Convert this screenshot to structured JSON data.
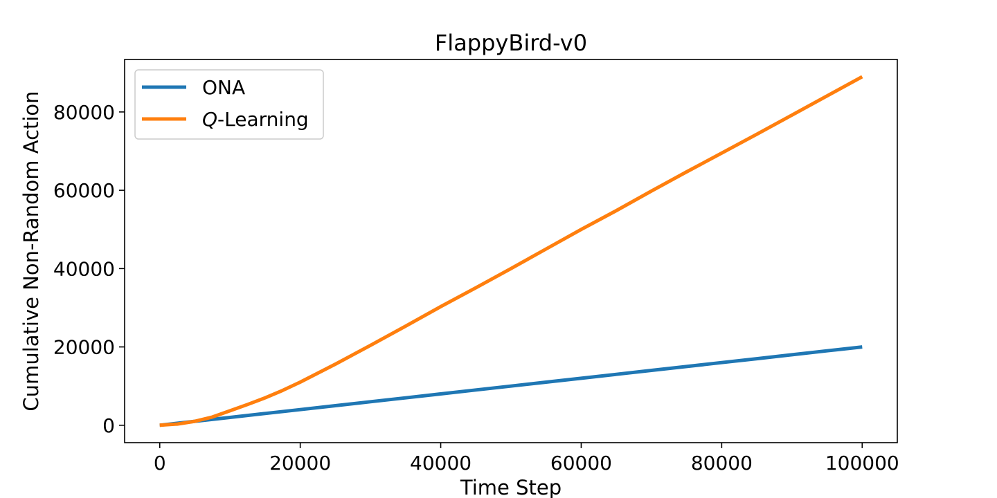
{
  "chart_data": {
    "type": "line",
    "title": "FlappyBird-v0",
    "xlabel": "Time Step",
    "ylabel": "Cumulative Non-Random Action",
    "xlim": [
      -5000,
      105000
    ],
    "ylim": [
      -4450,
      93400
    ],
    "xticks": [
      0,
      20000,
      40000,
      60000,
      80000,
      100000
    ],
    "xtick_labels": [
      "0",
      "20000",
      "40000",
      "60000",
      "80000",
      "100000"
    ],
    "yticks": [
      0,
      20000,
      40000,
      60000,
      80000
    ],
    "ytick_labels": [
      "0",
      "20000",
      "40000",
      "60000",
      "80000"
    ],
    "grid": false,
    "legend_position": "top-left",
    "series": [
      {
        "name": "ONA",
        "color": "#1f77b4",
        "x": [
          0,
          5000,
          10000,
          15000,
          20000,
          25000,
          30000,
          35000,
          40000,
          45000,
          50000,
          55000,
          60000,
          65000,
          70000,
          75000,
          80000,
          85000,
          90000,
          95000,
          100000
        ],
        "y": [
          0,
          1000,
          2000,
          3000,
          4000,
          5000,
          6000,
          7000,
          8000,
          9000,
          10000,
          11000,
          12000,
          13000,
          14000,
          15000,
          16000,
          17000,
          18000,
          19000,
          20000
        ]
      },
      {
        "name": "Q-Learning",
        "name_italic": "Q",
        "name_rest": "-Learning",
        "color": "#ff7f0e",
        "x": [
          0,
          2500,
          5000,
          7500,
          10000,
          12500,
          15000,
          17500,
          20000,
          25000,
          30000,
          35000,
          40000,
          45000,
          50000,
          55000,
          60000,
          65000,
          70000,
          75000,
          80000,
          85000,
          90000,
          95000,
          100000
        ],
        "y": [
          0,
          300,
          1000,
          2100,
          3700,
          5300,
          7000,
          8900,
          11000,
          15600,
          20400,
          25300,
          30300,
          35100,
          40000,
          45000,
          50000,
          54800,
          59800,
          64700,
          69500,
          74300,
          79200,
          84100,
          89000
        ]
      }
    ]
  }
}
